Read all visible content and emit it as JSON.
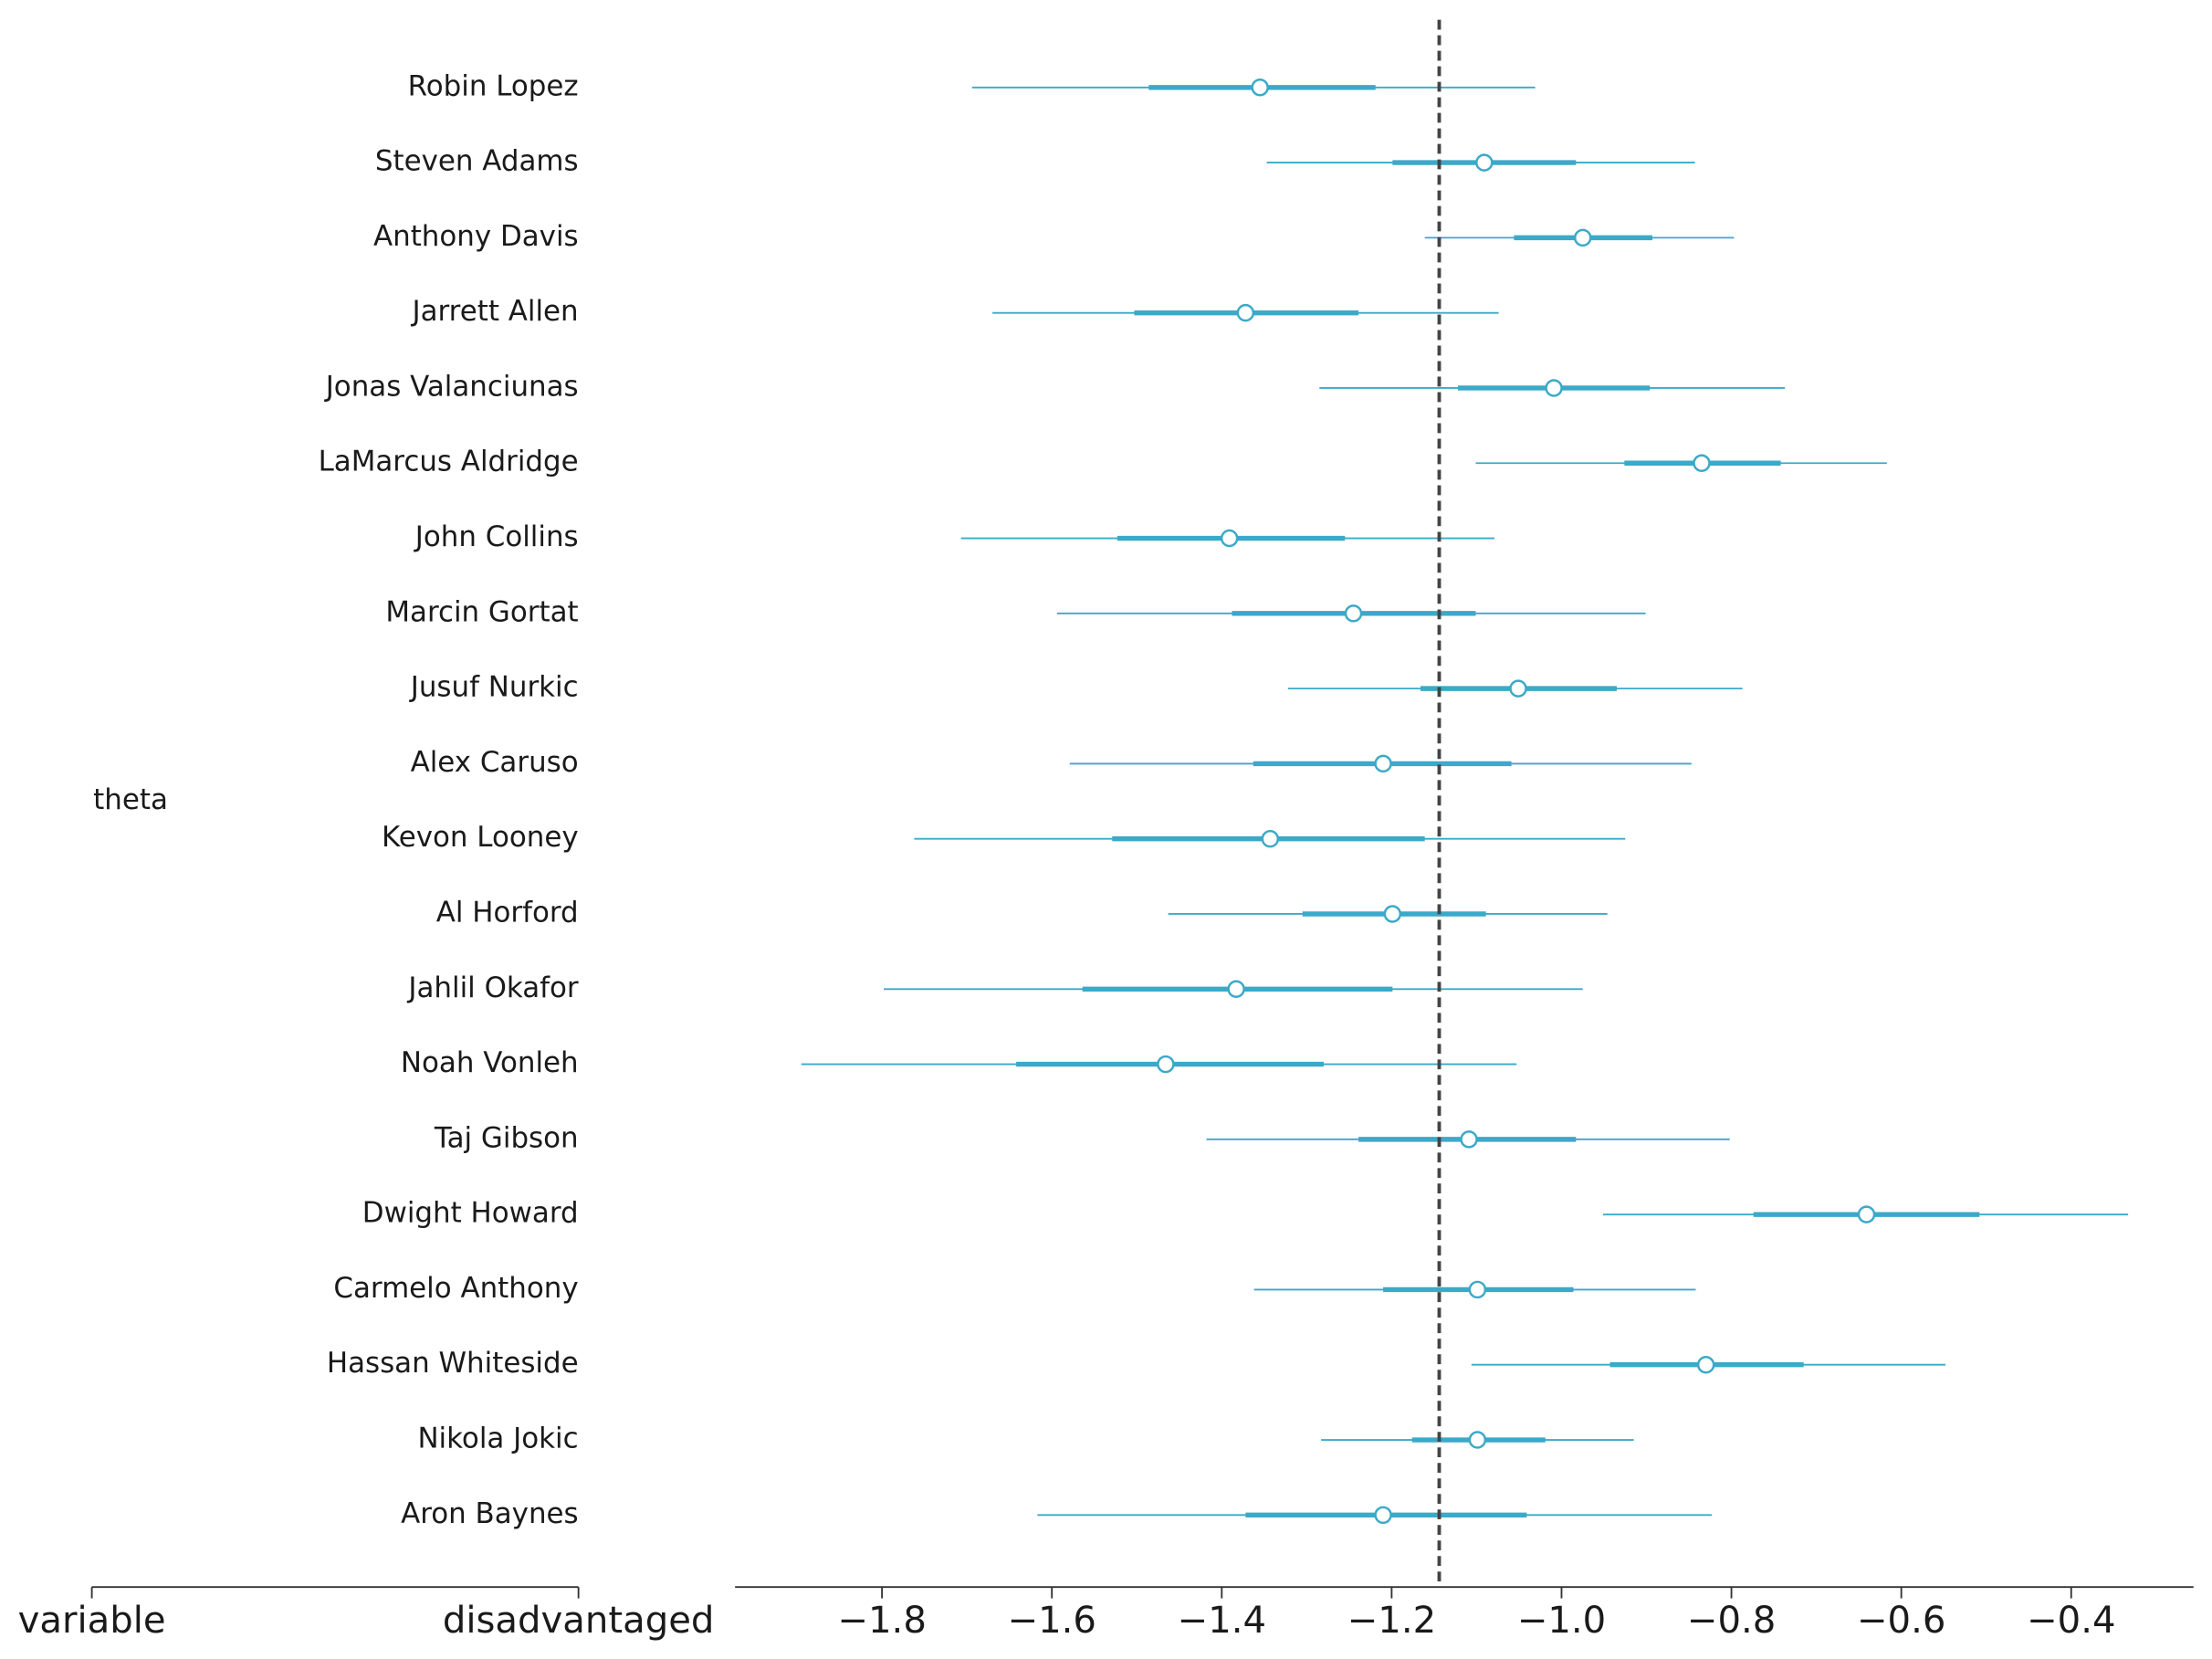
{
  "chart_data": {
    "type": "forest",
    "group_label": "theta",
    "left_axis_labels": [
      "variable",
      "disadvantaged"
    ],
    "categories": [
      "Robin Lopez",
      "Steven Adams",
      "Anthony Davis",
      "Jarrett Allen",
      "Jonas Valanciunas",
      "LaMarcus Aldridge",
      "John Collins",
      "Marcin Gortat",
      "Jusuf Nurkic",
      "Alex Caruso",
      "Kevon Looney",
      "Al Horford",
      "Jahlil Okafor",
      "Noah Vonleh",
      "Taj Gibson",
      "Dwight Howard",
      "Carmelo Anthony",
      "Hassan Whiteside",
      "Nikola Jokic",
      "Aron Baynes"
    ],
    "values": [
      -1.355,
      -1.091,
      -0.975,
      -1.372,
      -1.009,
      -0.835,
      -1.391,
      -1.245,
      -1.051,
      -1.21,
      -1.343,
      -1.199,
      -1.383,
      -1.466,
      -1.109,
      -0.641,
      -1.099,
      -0.83,
      -1.099,
      -1.21
    ],
    "hdi_low": [
      -1.694,
      -1.347,
      -1.161,
      -1.67,
      -1.285,
      -1.101,
      -1.707,
      -1.594,
      -1.322,
      -1.579,
      -1.762,
      -1.463,
      -1.798,
      -1.895,
      -1.418,
      -0.951,
      -1.362,
      -1.106,
      -1.283,
      -1.617
    ],
    "hdi_high": [
      -1.031,
      -0.843,
      -0.797,
      -1.074,
      -0.737,
      -0.617,
      -1.079,
      -0.901,
      -0.787,
      -0.847,
      -0.925,
      -0.946,
      -0.975,
      -1.053,
      -0.802,
      -0.333,
      -0.842,
      -0.548,
      -0.915,
      -0.823
    ],
    "iqr_low": [
      -1.486,
      -1.199,
      -1.056,
      -1.503,
      -1.122,
      -0.926,
      -1.523,
      -1.388,
      -1.166,
      -1.363,
      -1.529,
      -1.305,
      -1.564,
      -1.642,
      -1.239,
      -0.774,
      -1.21,
      -0.943,
      -1.176,
      -1.372
    ],
    "iqr_high": [
      -1.219,
      -0.983,
      -0.893,
      -1.239,
      -0.896,
      -0.742,
      -1.255,
      -1.101,
      -0.935,
      -1.059,
      -1.161,
      -1.089,
      -1.199,
      -1.28,
      -0.983,
      -0.508,
      -0.986,
      -0.715,
      -1.019,
      -1.041
    ],
    "reference_line": -1.144,
    "color": "#3ba9c8",
    "xlim": [
      -1.973,
      -0.256
    ],
    "xticks": [
      {
        "value": -1.8,
        "label": "−1.8"
      },
      {
        "value": -1.6,
        "label": "−1.6"
      },
      {
        "value": -1.4,
        "label": "−1.4"
      },
      {
        "value": -1.2,
        "label": "−1.2"
      },
      {
        "value": -1.0,
        "label": "−1.0"
      },
      {
        "value": -0.8,
        "label": "−0.8"
      },
      {
        "value": -0.6,
        "label": "−0.6"
      },
      {
        "value": -0.4,
        "label": "−0.4"
      }
    ]
  }
}
